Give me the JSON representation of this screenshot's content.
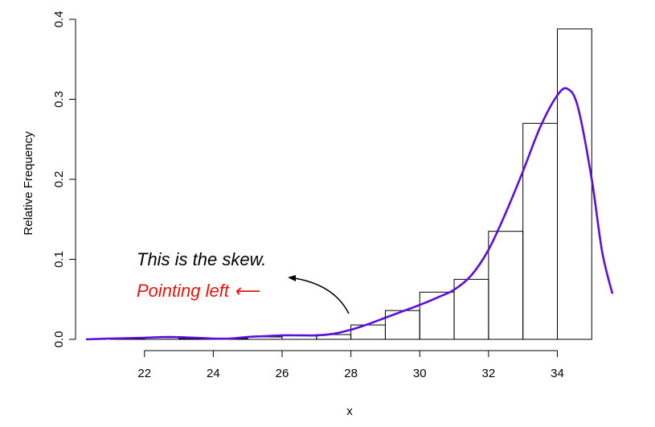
{
  "chart_data": {
    "type": "histogram",
    "xlabel": "x",
    "ylabel": "Relative Frequency",
    "xlim": [
      20.3,
      35.6
    ],
    "ylim": [
      0,
      0.4
    ],
    "x_ticks": [
      "22",
      "24",
      "26",
      "28",
      "30",
      "32",
      "34"
    ],
    "y_ticks": [
      "0.0",
      "0.1",
      "0.2",
      "0.3",
      "0.4"
    ],
    "bins": [
      {
        "x0": 21,
        "x1": 22,
        "value": 0.001
      },
      {
        "x0": 22,
        "x1": 23,
        "value": 0.002
      },
      {
        "x0": 23,
        "x1": 24,
        "value": 0.001
      },
      {
        "x0": 24,
        "x1": 25,
        "value": 0.001
      },
      {
        "x0": 25,
        "x1": 26,
        "value": 0.003
      },
      {
        "x0": 26,
        "x1": 27,
        "value": 0.005
      },
      {
        "x0": 27,
        "x1": 28,
        "value": 0.006
      },
      {
        "x0": 28,
        "x1": 29,
        "value": 0.018
      },
      {
        "x0": 29,
        "x1": 30,
        "value": 0.036
      },
      {
        "x0": 30,
        "x1": 31,
        "value": 0.059
      },
      {
        "x0": 31,
        "x1": 32,
        "value": 0.075
      },
      {
        "x0": 32,
        "x1": 33,
        "value": 0.135
      },
      {
        "x0": 33,
        "x1": 34,
        "value": 0.27
      },
      {
        "x0": 34,
        "x1": 35,
        "value": 0.388
      }
    ],
    "density_series": {
      "color": "#5a0fdc",
      "x": [
        20.3,
        21,
        22,
        22.7,
        23.5,
        24,
        24.5,
        25,
        25.5,
        26,
        26.5,
        27,
        27.5,
        28,
        28.5,
        29,
        29.5,
        30,
        30.5,
        31,
        31.5,
        32,
        32.5,
        33,
        33.5,
        34,
        34.3,
        34.6,
        35,
        35.3,
        35.6
      ],
      "y": [
        0.0,
        0.001,
        0.002,
        0.003,
        0.002,
        0.001,
        0.001,
        0.003,
        0.004,
        0.005,
        0.005,
        0.005,
        0.007,
        0.012,
        0.019,
        0.027,
        0.035,
        0.043,
        0.052,
        0.062,
        0.08,
        0.112,
        0.158,
        0.21,
        0.265,
        0.305,
        0.313,
        0.29,
        0.2,
        0.11,
        0.057
      ]
    },
    "annotations": [
      {
        "text": "This is the skew.",
        "color": "#000000"
      },
      {
        "text": "Pointing left ⟵",
        "color": "#e8140c"
      }
    ]
  }
}
